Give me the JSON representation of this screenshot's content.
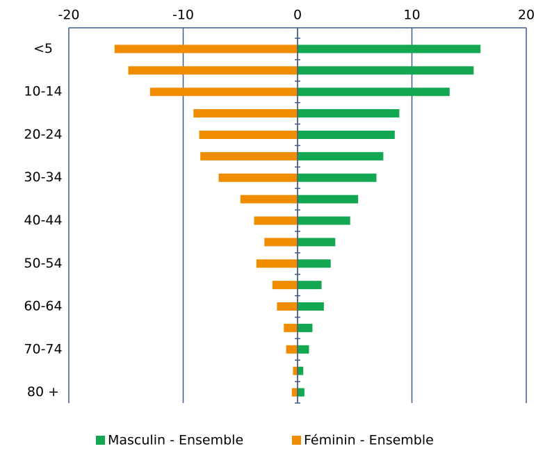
{
  "chart_data": {
    "type": "bar",
    "orientation": "horizontal",
    "categories": [
      "<5",
      null,
      "10-14",
      null,
      "20-24",
      null,
      "30-34",
      null,
      "40-44",
      null,
      "50-54",
      null,
      "60-64",
      null,
      "70-74",
      null,
      "80 +"
    ],
    "series": [
      {
        "name": "Masculin - Ensemble",
        "color": "#12a750",
        "values": [
          16.0,
          15.4,
          13.3,
          8.9,
          8.5,
          7.5,
          6.9,
          5.3,
          4.6,
          3.3,
          2.9,
          2.1,
          2.3,
          1.3,
          1.0,
          0.5,
          0.6
        ]
      },
      {
        "name": "Féminin - Ensemble",
        "color": "#f08c00",
        "values": [
          -16.0,
          -14.8,
          -12.9,
          -9.1,
          -8.6,
          -8.5,
          -6.9,
          -5.0,
          -3.8,
          -2.9,
          -3.6,
          -2.2,
          -1.8,
          -1.2,
          -1.0,
          -0.4,
          -0.5
        ]
      }
    ],
    "xlim": [
      -20,
      20
    ],
    "xticks": [
      -20,
      -10,
      0,
      10,
      20
    ],
    "grid": true,
    "legend": "bottom"
  }
}
